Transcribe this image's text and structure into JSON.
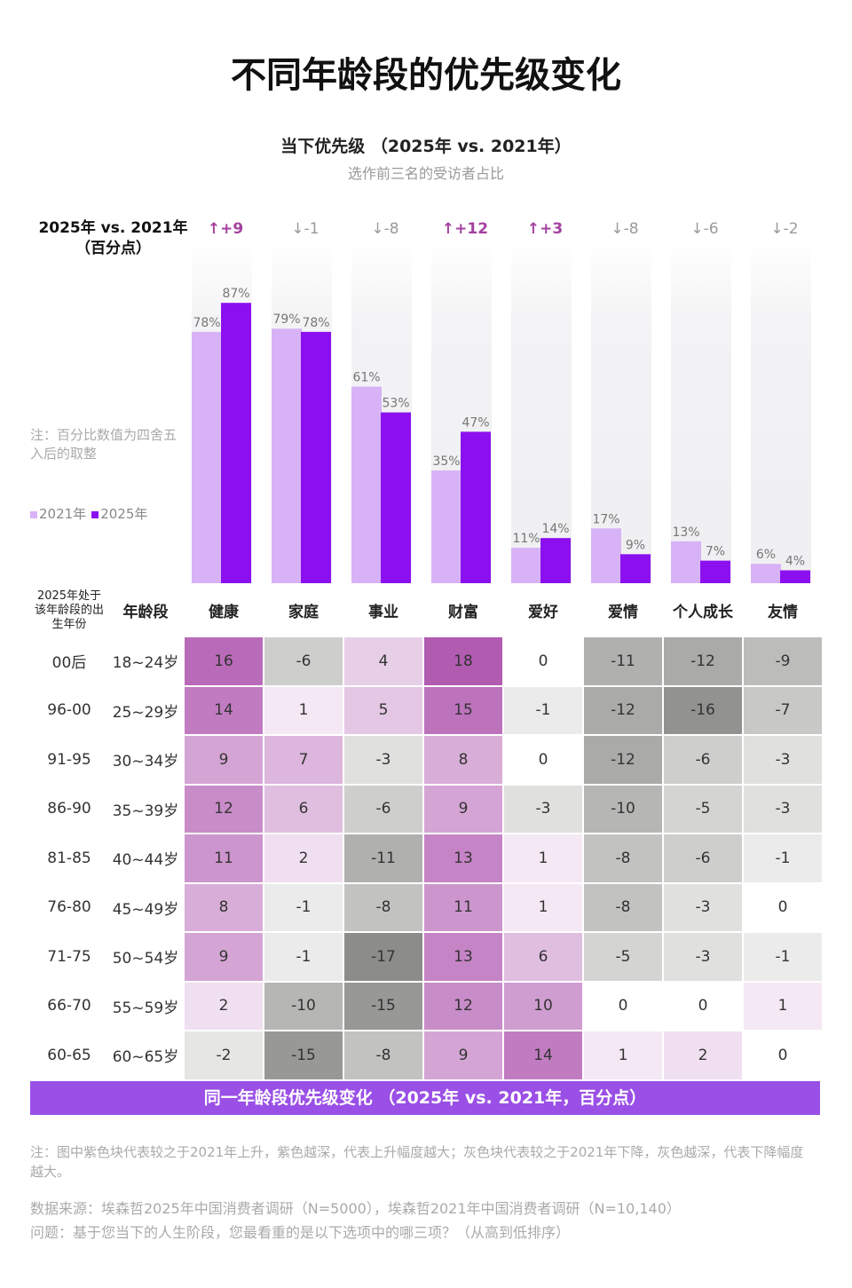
{
  "title": "不同年龄段的优先级变化",
  "subtitle": "当下优先级 （2025年 vs. 2021年）",
  "subsubtitle": "选作前三名的受访者占比",
  "delta_header": [
    "2025年 vs. 2021年",
    "（百分点）"
  ],
  "rounding_note": "注：百分比数值为四舍五入后的取整",
  "colors": {
    "y2021": "#d8b2f6",
    "y2025": "#8c10ef",
    "up": "#a4419f",
    "down": "#9a9a9a",
    "banner": "#9a4fe6"
  },
  "chart_data": {
    "type": "bar",
    "categories": [
      "健康",
      "家庭",
      "事业",
      "财富",
      "爱好",
      "爱情",
      "个人成长",
      "友情"
    ],
    "series": [
      {
        "name": "2021年",
        "values": [
          78,
          79,
          61,
          35,
          11,
          17,
          13,
          6
        ]
      },
      {
        "name": "2025年",
        "values": [
          87,
          78,
          53,
          47,
          14,
          9,
          7,
          4
        ]
      }
    ],
    "deltas": [
      "+9",
      "-1",
      "-8",
      "+12",
      "+3",
      "-8",
      "-6",
      "-2"
    ],
    "unit": "%",
    "legend": "left"
  },
  "table": {
    "headers": [
      "2025年处于该年龄段的出生年份",
      "年龄段",
      "健康",
      "家庭",
      "事业",
      "财富",
      "爱好",
      "爱情",
      "个人成长",
      "友情"
    ],
    "rows": [
      {
        "birth": "00后",
        "age": "18~24岁",
        "values": [
          16,
          -6,
          4,
          18,
          0,
          -11,
          -12,
          -9
        ]
      },
      {
        "birth": "96-00",
        "age": "25~29岁",
        "values": [
          14,
          1,
          5,
          15,
          -1,
          -12,
          -16,
          -7
        ]
      },
      {
        "birth": "91-95",
        "age": "30~34岁",
        "values": [
          9,
          7,
          -3,
          8,
          0,
          -12,
          -6,
          -3
        ]
      },
      {
        "birth": "86-90",
        "age": "35~39岁",
        "values": [
          12,
          6,
          -6,
          9,
          -3,
          -10,
          -5,
          -3
        ]
      },
      {
        "birth": "81-85",
        "age": "40~44岁",
        "values": [
          11,
          2,
          -11,
          13,
          1,
          -8,
          -6,
          -1
        ]
      },
      {
        "birth": "76-80",
        "age": "45~49岁",
        "values": [
          8,
          -1,
          -8,
          11,
          1,
          -8,
          -3,
          0
        ]
      },
      {
        "birth": "71-75",
        "age": "50~54岁",
        "values": [
          9,
          -1,
          -17,
          13,
          6,
          -5,
          -3,
          -1
        ]
      },
      {
        "birth": "66-70",
        "age": "55~59岁",
        "values": [
          2,
          -10,
          -15,
          12,
          10,
          0,
          0,
          1
        ]
      },
      {
        "birth": "60-65",
        "age": "60~65岁",
        "values": [
          -2,
          -15,
          -8,
          9,
          14,
          1,
          2,
          0
        ]
      }
    ],
    "banner": "同一年龄段优先级变化 （2025年 vs. 2021年，百分点）"
  },
  "footnotes": {
    "color_note": "注：图中紫色块代表较之于2021年上升，紫色越深，代表上升幅度越大；灰色块代表较之于2021年下降，灰色越深，代表下降幅度越大。",
    "source": "数据来源：埃森哲2025年中国消费者调研（N=5000），埃森哲2021年中国消费者调研（N=10,140）",
    "question": "问题：基于您当下的人生阶段，您最看重的是以下选项中的哪三项？（从高到低排序）"
  }
}
